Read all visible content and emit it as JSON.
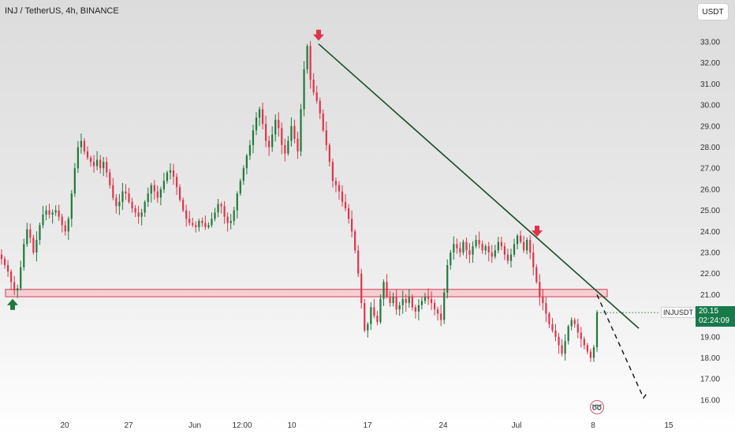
{
  "header": {
    "title": "INJ / TetherUS, 4h, BINANCE"
  },
  "toolbar": {
    "currency": "USDT"
  },
  "price_tag": {
    "symbol": "INJUSDT",
    "price": "20.15",
    "countdown": "02:24:09"
  },
  "icons": {
    "alert": "flash-icon"
  },
  "colors": {
    "up": "#1f7a3b",
    "down": "#e0344b",
    "trendline": "#1b4d2b",
    "zone_fill": "#f6c9cf",
    "zone_border": "#d23c50",
    "tag_bg": "#187a4b"
  },
  "chart_data": {
    "type": "candlestick",
    "title": "INJ / TetherUS, 4h, BINANCE",
    "y_ticks": [
      "16.00",
      "17.00",
      "18.00",
      "19.00",
      "20.00",
      "21.00",
      "22.00",
      "23.00",
      "24.00",
      "25.00",
      "26.00",
      "27.00",
      "28.00",
      "29.00",
      "30.00",
      "31.00",
      "32.00",
      "33.00"
    ],
    "x_ticks": [
      "20",
      "27",
      "Jun",
      "12:00",
      "10",
      "17",
      "24",
      "Jul",
      "8",
      "15"
    ],
    "ylim": [
      15.5,
      34.0
    ],
    "last_price": 20.15,
    "zone": {
      "low": 20.9,
      "high": 21.25
    },
    "trendline": {
      "start": {
        "date": "Jun 12",
        "price": 32.9
      },
      "end": {
        "date": "Jul 11",
        "price": 19.4
      }
    },
    "projection": [
      {
        "date": "Jul 8",
        "price": 21.0
      },
      {
        "date": "Jul 11",
        "price": 16.1
      },
      {
        "date": "Jul 11",
        "price": 16.4
      }
    ],
    "markers": [
      {
        "type": "sell",
        "date": "Jun 12",
        "price": 32.9
      },
      {
        "type": "sell",
        "date": "Jul 1",
        "price": 23.6
      },
      {
        "type": "buy",
        "date": "May 14",
        "price": 21.1
      }
    ],
    "closes": [
      22.7,
      22.4,
      22.1,
      21.6,
      21.2,
      21.3,
      22.3,
      23.4,
      24.1,
      23.7,
      23.0,
      23.6,
      24.3,
      24.8,
      25.0,
      24.8,
      24.9,
      25.0,
      24.7,
      24.3,
      24.0,
      24.6,
      25.8,
      27.0,
      28.0,
      28.3,
      27.8,
      27.5,
      27.3,
      27.1,
      27.4,
      27.0,
      27.3,
      26.8,
      26.2,
      25.6,
      25.2,
      25.4,
      25.9,
      25.8,
      25.4,
      25.1,
      24.9,
      24.7,
      24.9,
      25.4,
      25.8,
      26.2,
      25.9,
      25.6,
      26.0,
      26.4,
      26.8,
      26.9,
      26.6,
      26.1,
      25.5,
      25.0,
      24.6,
      24.4,
      24.3,
      24.2,
      24.5,
      24.4,
      24.2,
      24.3,
      24.6,
      24.9,
      25.3,
      25.2,
      24.7,
      24.4,
      24.5,
      25.0,
      25.8,
      26.4,
      27.0,
      27.6,
      28.1,
      28.8,
      29.4,
      29.8,
      29.1,
      28.3,
      28.0,
      28.6,
      29.3,
      28.9,
      28.1,
      27.7,
      28.3,
      29.0,
      28.4,
      27.8,
      29.8,
      31.7,
      32.8,
      31.2,
      30.6,
      30.2,
      29.6,
      28.8,
      28.1,
      27.3,
      26.4,
      26.2,
      25.9,
      25.4,
      25.1,
      24.6,
      24.0,
      23.1,
      22.0,
      20.6,
      19.3,
      19.6,
      20.4,
      20.0,
      19.7,
      20.8,
      21.6,
      20.9,
      20.6,
      20.9,
      20.3,
      20.5,
      20.8,
      20.6,
      20.9,
      20.4,
      20.2,
      20.5,
      20.7,
      20.9,
      20.8,
      20.6,
      20.3,
      20.1,
      19.8,
      21.1,
      22.4,
      23.0,
      23.4,
      23.2,
      23.0,
      23.5,
      23.1,
      22.9,
      23.3,
      23.6,
      23.4,
      23.1,
      23.3,
      23.0,
      22.8,
      23.1,
      23.5,
      23.3,
      22.9,
      22.6,
      22.9,
      23.4,
      23.8,
      23.5,
      23.1,
      23.6,
      23.0,
      22.3,
      21.6,
      20.9,
      20.6,
      20.1,
      19.6,
      19.3,
      19.0,
      18.6,
      18.2,
      18.8,
      19.5,
      19.8,
      19.6,
      19.2,
      18.9,
      18.6,
      18.3,
      18.0,
      18.5,
      20.15
    ]
  }
}
